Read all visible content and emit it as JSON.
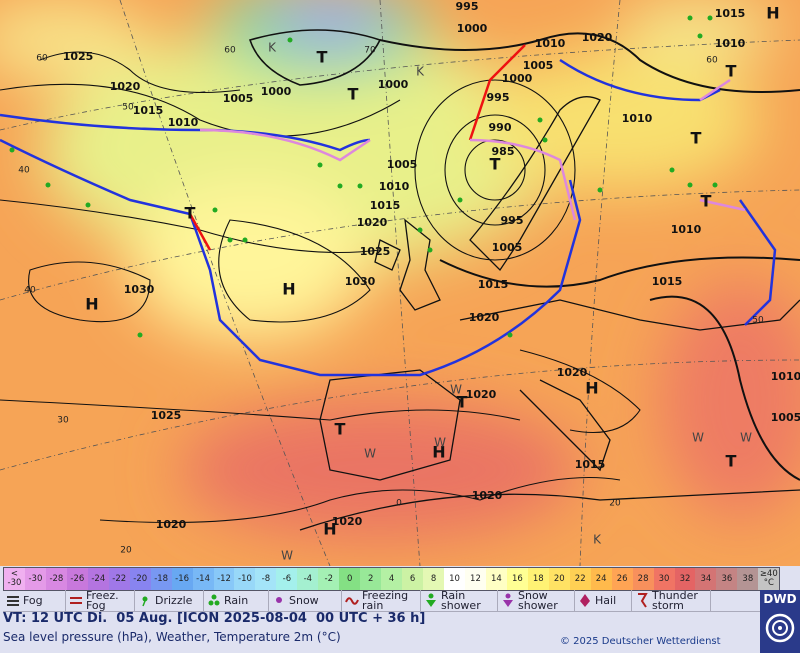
{
  "map": {
    "isobar_labels": [
      "1025",
      "1020",
      "1015",
      "1010",
      "1005",
      "1000",
      "995",
      "1000",
      "1010",
      "1020",
      "1015",
      "1010",
      "1005",
      "1000",
      "995",
      "990",
      "985",
      "1000",
      "1005",
      "1010",
      "1015",
      "1020",
      "1025",
      "1030",
      "1030",
      "995",
      "1005",
      "1015",
      "1020",
      "1010",
      "1010",
      "1015",
      "1020",
      "1020",
      "1025",
      "1015",
      "1020",
      "1020",
      "1020",
      "1005",
      "1010"
    ],
    "center_labels": [
      "H",
      "H",
      "H",
      "H",
      "H",
      "H",
      "T",
      "T",
      "T",
      "T",
      "T",
      "T",
      "T",
      "T",
      "T",
      "T"
    ],
    "grid_labels": [
      "60",
      "60",
      "50",
      "40",
      "40",
      "30",
      "20",
      "70",
      "60",
      "50",
      "20",
      "0"
    ],
    "airmass_labels": [
      "K",
      "K",
      "W",
      "W",
      "W",
      "W",
      "W",
      "W",
      "K"
    ]
  },
  "scale": {
    "cells": [
      {
        "label": "< -30",
        "color": "#f0b0f0"
      },
      {
        "label": "-30",
        "color": "#e49ae8"
      },
      {
        "label": "-28",
        "color": "#d888e2"
      },
      {
        "label": "-26",
        "color": "#c878dc"
      },
      {
        "label": "-24",
        "color": "#b474e0"
      },
      {
        "label": "-22",
        "color": "#a078e8"
      },
      {
        "label": "-20",
        "color": "#8884f0"
      },
      {
        "label": "-18",
        "color": "#7898f2"
      },
      {
        "label": "-16",
        "color": "#68a8f2"
      },
      {
        "label": "-14",
        "color": "#78b8f6"
      },
      {
        "label": "-12",
        "color": "#88c8f8"
      },
      {
        "label": "-10",
        "color": "#98d8f8"
      },
      {
        "label": "-8",
        "color": "#a4e4f8"
      },
      {
        "label": "-6",
        "color": "#a4f0ec"
      },
      {
        "label": "-4",
        "color": "#a4f0d0"
      },
      {
        "label": "-2",
        "color": "#a4f0b4"
      },
      {
        "label": "0",
        "color": "#84e084"
      },
      {
        "label": "2",
        "color": "#98e898"
      },
      {
        "label": "4",
        "color": "#b4f0a4"
      },
      {
        "label": "6",
        "color": "#ccf2a4"
      },
      {
        "label": "8",
        "color": "#e4f8b4"
      },
      {
        "label": "10",
        "color": "#ffffff"
      },
      {
        "label": "12",
        "color": "#fffff0"
      },
      {
        "label": "14",
        "color": "#ffffc4"
      },
      {
        "label": "16",
        "color": "#ffff94"
      },
      {
        "label": "18",
        "color": "#fff274"
      },
      {
        "label": "20",
        "color": "#ffe264"
      },
      {
        "label": "22",
        "color": "#ffd054"
      },
      {
        "label": "24",
        "color": "#ffba4c"
      },
      {
        "label": "26",
        "color": "#ffa454"
      },
      {
        "label": "28",
        "color": "#f8905c"
      },
      {
        "label": "30",
        "color": "#f07464"
      },
      {
        "label": "32",
        "color": "#e46464"
      },
      {
        "label": "34",
        "color": "#d47474"
      },
      {
        "label": "36",
        "color": "#c48484"
      },
      {
        "label": "38",
        "color": "#b49494"
      },
      {
        "label": "≥40 °C",
        "color": "#c4c4c4"
      }
    ]
  },
  "legend": [
    "Fog",
    "Freez. Fog",
    "Drizzle",
    "Rain",
    "Snow",
    "Freezing rain",
    "Rain shower",
    "Snow shower",
    "Hail",
    "Thunder storm"
  ],
  "footer": {
    "valid_time": "VT: 12 UTC Di.  05 Aug. [ICON 2025-08-04  00 UTC + 36 h]",
    "description": "Sea level pressure (hPa), Weather, Temperature 2m (°C)",
    "copyright": "© 2025 Deutscher Wetterdienst",
    "logo": "DWD"
  }
}
